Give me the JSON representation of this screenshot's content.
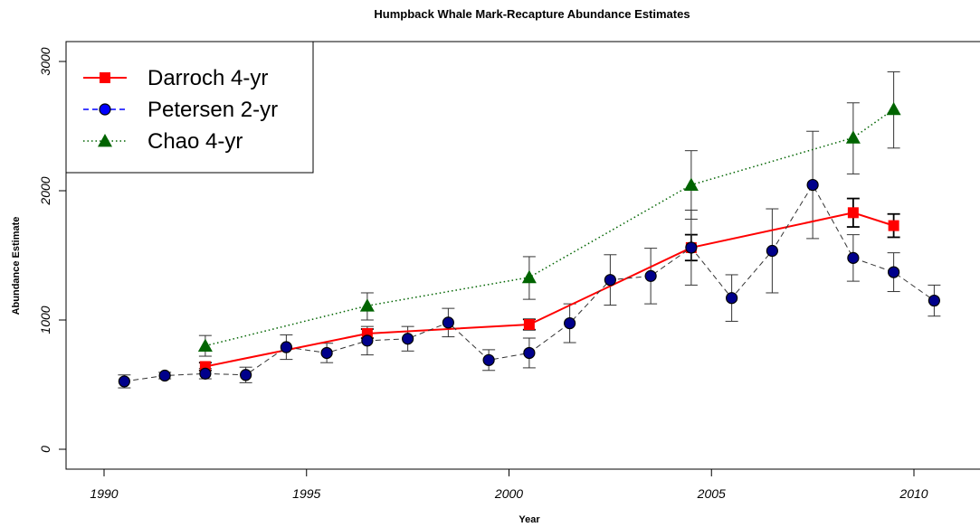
{
  "chart_data": {
    "type": "line",
    "title": "Humpback Whale Mark-Recapture Abundance Estimates",
    "xlabel": "Year",
    "ylabel": "Abundance Estimate",
    "xlim": [
      1989.5,
      2011.5
    ],
    "ylim": [
      -100,
      3000
    ],
    "x_ticks": [
      1990,
      1995,
      2000,
      2005,
      2010
    ],
    "y_ticks": [
      0,
      1000,
      2000,
      3000
    ],
    "grid": false,
    "legend_position": "top-left",
    "series": [
      {
        "name": "Darroch 4-yr",
        "color": "#ff0000",
        "line_style": "solid",
        "marker": "square",
        "x": [
          1992.5,
          1996.5,
          2000.5,
          2004.5,
          2008.5,
          2009.5
        ],
        "y": [
          640,
          895,
          965,
          1560,
          1830,
          1730
        ],
        "err_low": [
          610,
          860,
          925,
          1460,
          1720,
          1640
        ],
        "err_high": [
          670,
          930,
          1005,
          1660,
          1940,
          1820
        ]
      },
      {
        "name": "Petersen 2-yr",
        "color": "#0000ff",
        "line_style": "dashed",
        "marker": "circle",
        "x": [
          1990.5,
          1991.5,
          1992.5,
          1993.5,
          1994.5,
          1995.5,
          1996.5,
          1997.5,
          1998.5,
          1999.5,
          2000.5,
          2001.5,
          2002.5,
          2003.5,
          2004.5,
          2005.5,
          2006.5,
          2007.5,
          2008.5,
          2009.5,
          2010.5
        ],
        "y": [
          525,
          570,
          585,
          575,
          790,
          745,
          840,
          855,
          980,
          690,
          745,
          975,
          1310,
          1340,
          1560,
          1170,
          1535,
          2045,
          1480,
          1370,
          1150
        ],
        "err_low": [
          475,
          545,
          545,
          515,
          695,
          670,
          730,
          760,
          870,
          610,
          630,
          825,
          1115,
          1125,
          1270,
          990,
          1210,
          1630,
          1300,
          1220,
          1030
        ],
        "err_high": [
          575,
          595,
          625,
          635,
          885,
          820,
          950,
          950,
          1090,
          770,
          860,
          1125,
          1505,
          1555,
          1850,
          1350,
          1860,
          2460,
          1660,
          1520,
          1270
        ]
      },
      {
        "name": "Chao 4-yr",
        "color": "#006400",
        "line_style": "dotted",
        "marker": "triangle",
        "x": [
          1992.5,
          1996.5,
          2000.5,
          2004.5,
          2008.5,
          2009.5
        ],
        "y": [
          800,
          1110,
          1330,
          2045,
          2410,
          2630
        ],
        "err_low": [
          720,
          1000,
          1160,
          1780,
          2130,
          2330
        ],
        "err_high": [
          880,
          1210,
          1490,
          2310,
          2680,
          2920
        ]
      }
    ]
  }
}
